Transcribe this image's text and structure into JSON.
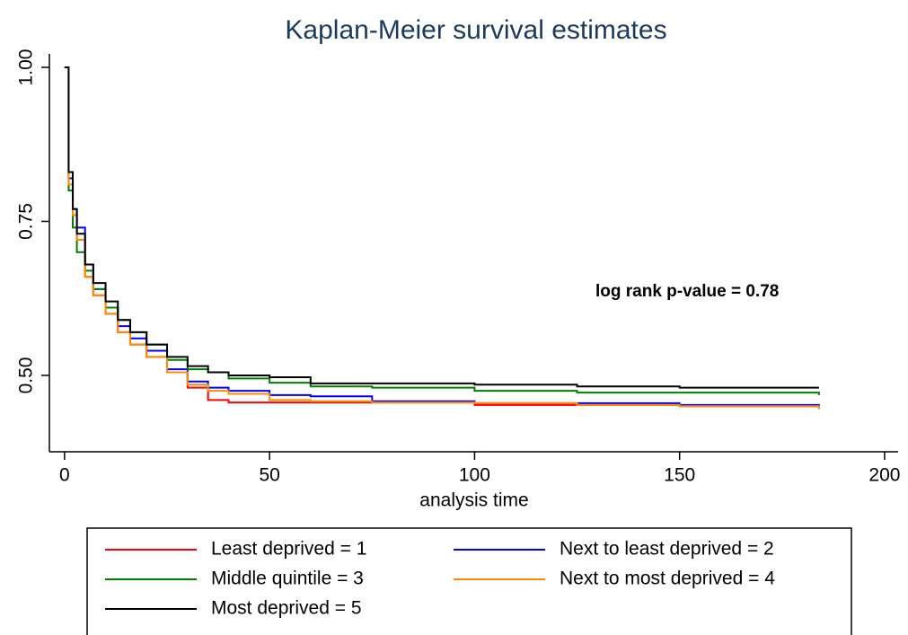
{
  "chart_data": {
    "type": "step",
    "title": "Kaplan-Meier survival estimates",
    "x_label": "analysis time",
    "annotation": "log rank p-value = 0.78",
    "x": [
      0,
      1,
      2,
      3,
      5,
      7,
      10,
      13,
      16,
      20,
      25,
      30,
      35,
      40,
      50,
      60,
      75,
      100,
      125,
      150,
      184
    ],
    "series": [
      {
        "name": "Least deprived = 1",
        "color": "#ff0000",
        "values": [
          1,
          0.82,
          0.76,
          0.72,
          0.66,
          0.63,
          0.6,
          0.57,
          0.55,
          0.53,
          0.505,
          0.48,
          0.46,
          0.456,
          0.456,
          0.456,
          0.456,
          0.452,
          0.452,
          0.45,
          0.447
        ]
      },
      {
        "name": "Next to least deprived = 2",
        "color": "#0000ff",
        "values": [
          1,
          0.82,
          0.77,
          0.74,
          0.68,
          0.64,
          0.61,
          0.58,
          0.56,
          0.54,
          0.51,
          0.49,
          0.48,
          0.475,
          0.468,
          0.466,
          0.458,
          0.455,
          0.455,
          0.452,
          0.45
        ]
      },
      {
        "name": "Middle quintile = 3",
        "color": "#008000",
        "values": [
          1,
          0.8,
          0.74,
          0.7,
          0.67,
          0.64,
          0.61,
          0.59,
          0.57,
          0.55,
          0.525,
          0.51,
          0.505,
          0.495,
          0.488,
          0.482,
          0.48,
          0.475,
          0.472,
          0.472,
          0.468
        ]
      },
      {
        "name": "Next to most deprived = 4",
        "color": "#ff8c00",
        "values": [
          1,
          0.81,
          0.76,
          0.72,
          0.66,
          0.63,
          0.6,
          0.57,
          0.55,
          0.53,
          0.505,
          0.485,
          0.475,
          0.47,
          0.46,
          0.458,
          0.456,
          0.455,
          0.452,
          0.45,
          0.445
        ]
      },
      {
        "name": "Most deprived = 5",
        "color": "#000000",
        "values": [
          1,
          0.83,
          0.77,
          0.73,
          0.68,
          0.65,
          0.62,
          0.59,
          0.57,
          0.55,
          0.53,
          0.515,
          0.505,
          0.5,
          0.497,
          0.487,
          0.487,
          0.485,
          0.482,
          0.48,
          0.48
        ]
      }
    ],
    "xlim": [
      -3.7,
      203.3
    ],
    "xticks": [
      0,
      50,
      100,
      150,
      200
    ],
    "ylim": [
      0.376,
      1.0
    ],
    "yticks": [
      {
        "value": 0.5,
        "label": "0.50"
      },
      {
        "value": 0.75,
        "label": "0.75"
      },
      {
        "value": 1.0,
        "label": "1.00"
      }
    ]
  }
}
